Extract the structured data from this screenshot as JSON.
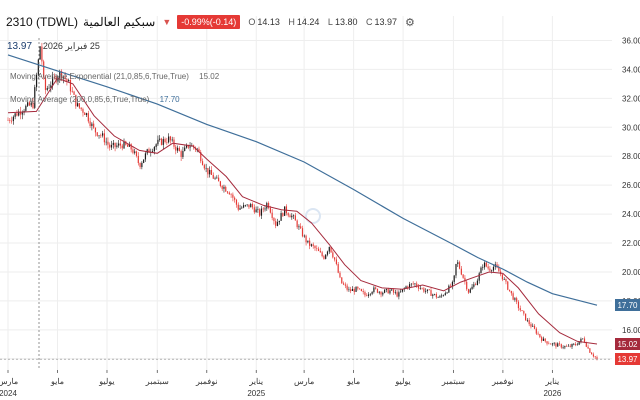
{
  "header": {
    "symbol": "2310 (TDWL)",
    "name": "سبكيم العالمية",
    "change": "-0.99%(-0.14)",
    "open_label": "O",
    "open": "14.13",
    "high_label": "H",
    "high": "14.24",
    "low_label": "L",
    "low": "13.80",
    "close_label": "C",
    "close": "13.97",
    "settings_icon": "gear-icon",
    "down_icon": "triangle-down-icon"
  },
  "crosshair": {
    "price": "13.97",
    "date": "25 فبراير 2026"
  },
  "indicators": [
    {
      "label": "Moving Average Exponential (21,0,85,6,True,True)",
      "value": "15.02",
      "color": "#a52a3c"
    },
    {
      "label": "Moving Average (200,0,85,6,True,True)",
      "value": "17.70",
      "color": "#3f6f9a"
    }
  ],
  "colors": {
    "up": "#1a1a1a",
    "down": "#e53935",
    "ema": "#a52a3c",
    "sma": "#3f6f9a"
  },
  "chart_data": {
    "type": "candlestick",
    "symbol": "2310 (TDWL)",
    "x_range": [
      "2024-03-01",
      "2026-02-25"
    ],
    "y_range": [
      13.5,
      37
    ],
    "y_ticks": [
      "36.00",
      "34.00",
      "32.00",
      "30.00",
      "28.00",
      "26.00",
      "24.00",
      "22.00",
      "20.00",
      "18.00",
      "16.00",
      "14.00"
    ],
    "x_ticks": [
      {
        "date": "2024-03-01",
        "label": "مارس",
        "year": "2024"
      },
      {
        "date": "2024-05-01",
        "label": "مايو"
      },
      {
        "date": "2024-07-01",
        "label": "يوليو"
      },
      {
        "date": "2024-09-01",
        "label": "سبتمبر"
      },
      {
        "date": "2024-11-01",
        "label": "نوفمبر"
      },
      {
        "date": "2025-01-01",
        "label": "يناير",
        "year": "2025"
      },
      {
        "date": "2025-03-01",
        "label": "مارس"
      },
      {
        "date": "2025-05-01",
        "label": "مايو"
      },
      {
        "date": "2025-07-01",
        "label": "يوليو"
      },
      {
        "date": "2025-09-01",
        "label": "سبتمبر"
      },
      {
        "date": "2025-11-01",
        "label": "نوفمبر"
      },
      {
        "date": "2026-01-01",
        "label": "يناير",
        "year": "2026"
      }
    ],
    "price_path": [
      [
        "2024-03-01",
        30.5
      ],
      [
        "2024-03-20",
        31.3
      ],
      [
        "2024-04-01",
        31.6
      ],
      [
        "2024-04-10",
        35.8
      ],
      [
        "2024-04-15",
        32.5
      ],
      [
        "2024-04-25",
        33.2
      ],
      [
        "2024-05-05",
        33.8
      ],
      [
        "2024-05-15",
        33.0
      ],
      [
        "2024-05-25",
        31.5
      ],
      [
        "2024-06-05",
        31.0
      ],
      [
        "2024-06-15",
        29.8
      ],
      [
        "2024-06-25",
        29.4
      ],
      [
        "2024-07-05",
        28.6
      ],
      [
        "2024-07-20",
        28.8
      ],
      [
        "2024-08-01",
        28.5
      ],
      [
        "2024-08-10",
        27.4
      ],
      [
        "2024-08-20",
        28.3
      ],
      [
        "2024-09-01",
        28.9
      ],
      [
        "2024-09-15",
        29.2
      ],
      [
        "2024-10-01",
        28.1
      ],
      [
        "2024-10-10",
        28.8
      ],
      [
        "2024-10-20",
        28.5
      ],
      [
        "2024-11-01",
        27.0
      ],
      [
        "2024-11-15",
        26.2
      ],
      [
        "2024-11-30",
        25.5
      ],
      [
        "2024-12-10",
        24.4
      ],
      [
        "2024-12-25",
        24.6
      ],
      [
        "2025-01-05",
        24.0
      ],
      [
        "2025-01-15",
        24.8
      ],
      [
        "2025-01-25",
        23.3
      ],
      [
        "2025-02-05",
        24.3
      ],
      [
        "2025-02-15",
        23.8
      ],
      [
        "2025-02-25",
        22.8
      ],
      [
        "2025-03-05",
        22.0
      ],
      [
        "2025-03-15",
        21.6
      ],
      [
        "2025-03-25",
        21.0
      ],
      [
        "2025-04-01",
        21.8
      ],
      [
        "2025-04-08",
        20.8
      ],
      [
        "2025-04-15",
        19.3
      ],
      [
        "2025-04-25",
        18.7
      ],
      [
        "2025-05-05",
        18.8
      ],
      [
        "2025-05-15",
        18.4
      ],
      [
        "2025-05-25",
        18.8
      ],
      [
        "2025-06-05",
        18.6
      ],
      [
        "2025-06-15",
        18.7
      ],
      [
        "2025-06-25",
        18.4
      ],
      [
        "2025-07-05",
        19.0
      ],
      [
        "2025-07-15",
        19.2
      ],
      [
        "2025-07-25",
        18.8
      ],
      [
        "2025-08-05",
        18.5
      ],
      [
        "2025-08-15",
        18.2
      ],
      [
        "2025-08-25",
        18.8
      ],
      [
        "2025-09-01",
        19.2
      ],
      [
        "2025-09-05",
        20.8
      ],
      [
        "2025-09-12",
        19.8
      ],
      [
        "2025-09-20",
        18.6
      ],
      [
        "2025-09-30",
        19.4
      ],
      [
        "2025-10-08",
        20.6
      ],
      [
        "2025-10-15",
        20.2
      ],
      [
        "2025-10-22",
        20.4
      ],
      [
        "2025-10-30",
        19.8
      ],
      [
        "2025-11-10",
        18.6
      ],
      [
        "2025-11-20",
        17.6
      ],
      [
        "2025-12-01",
        16.6
      ],
      [
        "2025-12-10",
        16.0
      ],
      [
        "2025-12-20",
        15.3
      ],
      [
        "2026-01-01",
        15.0
      ],
      [
        "2026-01-10",
        14.9
      ],
      [
        "2026-01-20",
        14.8
      ],
      [
        "2026-01-30",
        15.0
      ],
      [
        "2026-02-08",
        15.4
      ],
      [
        "2026-02-15",
        14.6
      ],
      [
        "2026-02-25",
        13.97
      ]
    ],
    "ema_path": [
      [
        "2024-03-01",
        31.0
      ],
      [
        "2024-04-05",
        31.1
      ],
      [
        "2024-05-01",
        33.4
      ],
      [
        "2024-05-20",
        33.0
      ],
      [
        "2024-06-15",
        30.8
      ],
      [
        "2024-07-10",
        29.4
      ],
      [
        "2024-08-10",
        28.4
      ],
      [
        "2024-09-01",
        28.2
      ],
      [
        "2024-09-20",
        28.9
      ],
      [
        "2024-10-15",
        28.7
      ],
      [
        "2024-11-01",
        27.8
      ],
      [
        "2024-11-25",
        26.6
      ],
      [
        "2024-12-15",
        25.2
      ],
      [
        "2025-01-10",
        24.6
      ],
      [
        "2025-02-01",
        24.3
      ],
      [
        "2025-02-20",
        24.2
      ],
      [
        "2025-03-10",
        23.4
      ],
      [
        "2025-04-01",
        21.9
      ],
      [
        "2025-04-20",
        20.5
      ],
      [
        "2025-05-10",
        19.4
      ],
      [
        "2025-06-05",
        18.9
      ],
      [
        "2025-06-30",
        18.8
      ],
      [
        "2025-07-25",
        19.1
      ],
      [
        "2025-08-20",
        18.7
      ],
      [
        "2025-09-10",
        19.3
      ],
      [
        "2025-09-25",
        19.6
      ],
      [
        "2025-10-15",
        20.0
      ],
      [
        "2025-11-01",
        19.9
      ],
      [
        "2025-11-20",
        18.9
      ],
      [
        "2025-12-15",
        17.1
      ],
      [
        "2026-01-10",
        15.8
      ],
      [
        "2026-02-01",
        15.2
      ],
      [
        "2026-02-25",
        15.02
      ]
    ],
    "sma_path": [
      [
        "2024-03-01",
        35.0
      ],
      [
        "2024-05-01",
        33.9
      ],
      [
        "2024-07-01",
        32.8
      ],
      [
        "2024-09-01",
        31.6
      ],
      [
        "2024-11-01",
        30.2
      ],
      [
        "2025-01-01",
        29.0
      ],
      [
        "2025-03-01",
        27.6
      ],
      [
        "2025-05-01",
        25.7
      ],
      [
        "2025-07-01",
        23.7
      ],
      [
        "2025-09-01",
        21.9
      ],
      [
        "2025-10-01",
        21.0
      ],
      [
        "2025-11-01",
        20.2
      ],
      [
        "2025-12-01",
        19.3
      ],
      [
        "2026-01-01",
        18.5
      ],
      [
        "2026-02-25",
        17.7
      ]
    ]
  }
}
